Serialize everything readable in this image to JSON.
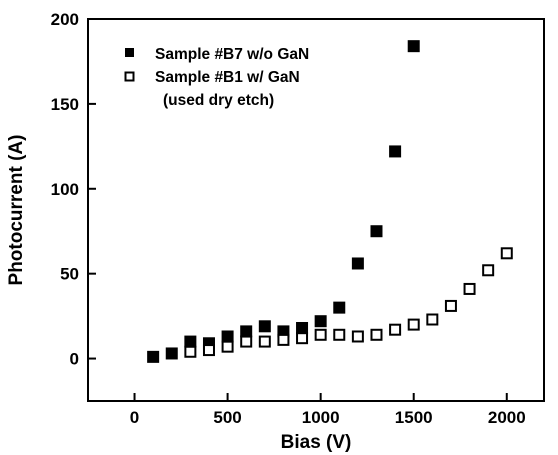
{
  "chart_data": {
    "type": "scatter",
    "xlabel": "Bias (V)",
    "ylabel": "Photocurrent (A)",
    "xlim": [
      -250,
      2200
    ],
    "ylim": [
      -25,
      200
    ],
    "xticks": [
      0,
      500,
      1000,
      1500,
      2000
    ],
    "yticks": [
      0,
      50,
      100,
      150,
      200
    ],
    "grid": false,
    "legend_position": "top-left",
    "series": [
      {
        "name": "Sample #B7 w/o GaN",
        "marker": "filled-square",
        "color": "#000000",
        "x": [
          100,
          200,
          300,
          400,
          500,
          600,
          700,
          800,
          900,
          1000,
          1100,
          1200,
          1300,
          1400,
          1500
        ],
        "y": [
          1,
          3,
          10,
          9,
          13,
          16,
          19,
          16,
          18,
          22,
          30,
          56,
          75,
          122,
          184
        ]
      },
      {
        "name": "Sample #B1 w/ GaN",
        "name_line2": "(used dry etch)",
        "marker": "open-square",
        "color": "#000000",
        "x": [
          300,
          400,
          500,
          600,
          700,
          800,
          900,
          1000,
          1100,
          1200,
          1300,
          1400,
          1500,
          1600,
          1700,
          1800,
          1900,
          2000
        ],
        "y": [
          4,
          5,
          7,
          10,
          10,
          11,
          12,
          14,
          14,
          13,
          14,
          17,
          20,
          23,
          31,
          41,
          52,
          62
        ]
      }
    ]
  }
}
